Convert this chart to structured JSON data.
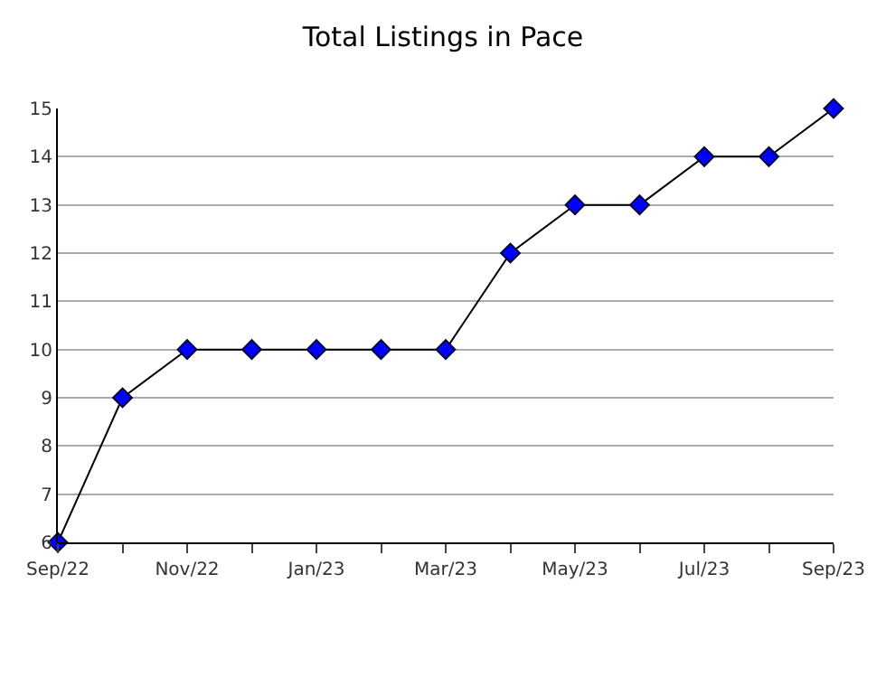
{
  "chart_data": {
    "type": "line",
    "title": "Total Listings in Pace",
    "categories": [
      "Sep/22",
      null,
      "Nov/22",
      null,
      "Jan/23",
      null,
      "Mar/23",
      null,
      "May/23",
      null,
      "Jul/23",
      null,
      "Sep/23"
    ],
    "series": [
      {
        "color": "#0000ff",
        "values": [
          6,
          9,
          10,
          10,
          10,
          10,
          10,
          12,
          13,
          13,
          14,
          14,
          15
        ]
      }
    ],
    "ylim": [
      6,
      15
    ],
    "yticks": [
      6,
      7,
      8,
      9,
      10,
      11,
      12,
      13,
      14,
      15
    ],
    "grid": "y",
    "marker": "diamond",
    "line_style": "solid"
  }
}
